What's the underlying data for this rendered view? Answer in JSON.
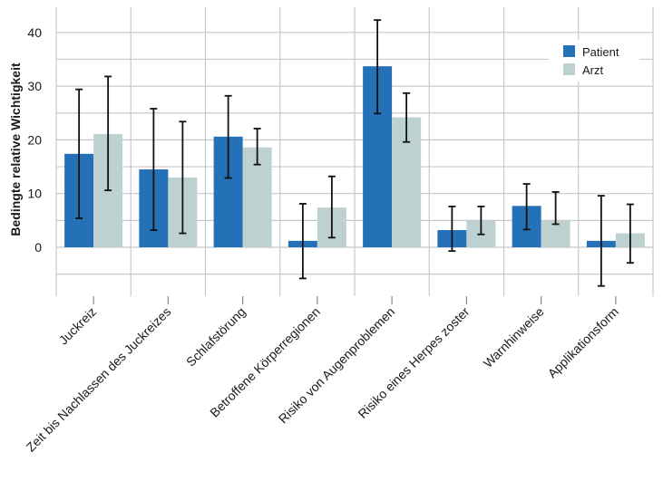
{
  "chart_data": {
    "type": "bar",
    "ylabel": "Bedingte relative Wichtigkeit",
    "xlabel": "",
    "ylim": [
      -9,
      44
    ],
    "yticks": [
      0,
      10,
      20,
      30,
      40
    ],
    "grid": true,
    "legend_position": "top-right",
    "categories": [
      "Juckreiz",
      "Zeit bis Nachlassen des Juckreizes",
      "Schlafstörung",
      "Betroffene Körperregionen",
      "Risiko von Augenproblemen",
      "Risiko eines Herpes zoster",
      "Warnhinweise",
      "Applikationsform"
    ],
    "series": [
      {
        "name": "Patient",
        "color": "#2471b8",
        "values": [
          17.4,
          14.5,
          20.6,
          1.2,
          33.7,
          3.2,
          7.7,
          1.2
        ],
        "err_low": [
          5.4,
          3.2,
          12.9,
          -5.8,
          24.9,
          -0.7,
          3.3,
          -7.2
        ],
        "err_high": [
          29.4,
          25.8,
          28.2,
          8.1,
          42.3,
          7.6,
          11.8,
          9.6
        ]
      },
      {
        "name": "Arzt",
        "color": "#bdd2d0",
        "values": [
          21.1,
          13.0,
          18.6,
          7.4,
          24.2,
          4.9,
          4.9,
          2.6
        ],
        "err_low": [
          10.6,
          2.6,
          15.4,
          1.8,
          19.6,
          2.4,
          4.3,
          -2.9
        ],
        "err_high": [
          31.8,
          23.4,
          22.1,
          13.2,
          28.7,
          7.6,
          10.3,
          8.0
        ]
      }
    ]
  }
}
